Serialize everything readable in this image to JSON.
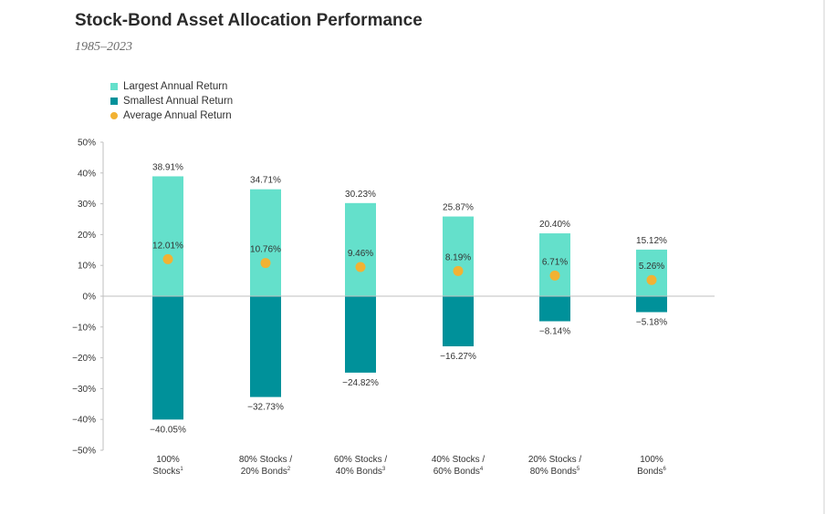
{
  "chart_data": {
    "type": "bar",
    "title": "Stock-Bond Asset Allocation Performance",
    "subtitle": "1985–2023",
    "ylim": [
      -50,
      50
    ],
    "yticks": [
      "50%",
      "40%",
      "30%",
      "20%",
      "10%",
      "0%",
      "−10%",
      "−20%",
      "−30%",
      "−40%",
      "−50%"
    ],
    "ytick_values": [
      50,
      40,
      30,
      20,
      10,
      0,
      -10,
      -20,
      -30,
      -40,
      -50
    ],
    "categories": [
      {
        "line1": "100%",
        "line2": "Stocks",
        "sup": "1"
      },
      {
        "line1": "80% Stocks /",
        "line2": "20% Bonds",
        "sup": "2"
      },
      {
        "line1": "60% Stocks /",
        "line2": "40% Bonds",
        "sup": "3"
      },
      {
        "line1": "40% Stocks /",
        "line2": "60% Bonds",
        "sup": "4"
      },
      {
        "line1": "20% Stocks /",
        "line2": "80% Bonds",
        "sup": "5"
      },
      {
        "line1": "100%",
        "line2": "Bonds",
        "sup": "6"
      }
    ],
    "series": [
      {
        "name": "Largest Annual Return",
        "color": "#64e0cb",
        "values": [
          38.91,
          34.71,
          30.23,
          25.87,
          20.4,
          15.12
        ],
        "labels": [
          "38.91%",
          "34.71%",
          "30.23%",
          "25.87%",
          "20.40%",
          "15.12%"
        ]
      },
      {
        "name": "Smallest Annual Return",
        "color": "#00919a",
        "values": [
          -40.05,
          -32.73,
          -24.82,
          -16.27,
          -8.14,
          -5.18
        ],
        "labels": [
          "−40.05%",
          "−32.73%",
          "−24.82%",
          "−16.27%",
          "−8.14%",
          "−5.18%"
        ]
      },
      {
        "name": "Average Annual Return",
        "color": "#f2b233",
        "values": [
          12.01,
          10.76,
          9.46,
          8.19,
          6.71,
          5.26
        ],
        "labels": [
          "12.01%",
          "10.76%",
          "9.46%",
          "8.19%",
          "6.71%",
          "5.26%"
        ]
      }
    ],
    "legend_position": "top-left",
    "grid": false
  }
}
